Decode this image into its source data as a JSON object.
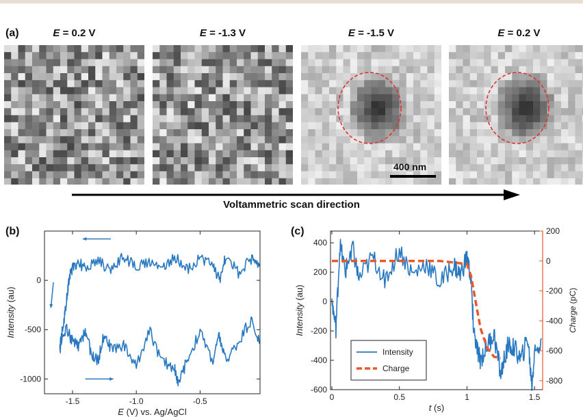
{
  "colors": {
    "trace": "#2878c1",
    "charge": "#e8582a",
    "circle": "#e03030",
    "axis": "#222222",
    "right_axis": "#e8582a"
  },
  "panel_a": {
    "label": "(a)",
    "images": [
      {
        "prefix": "E",
        "value": " = 0.2 V",
        "has_particle": false
      },
      {
        "prefix": "E",
        "value": " = -1.3 V",
        "has_particle": false
      },
      {
        "prefix": "E",
        "value": " = -1.5 V",
        "has_particle": true
      },
      {
        "prefix": "E",
        "value": " = 0.2 V",
        "has_particle": true
      }
    ],
    "scale_bar": "400 nm",
    "scan_label": "Voltammetric scan direction"
  },
  "chart_data": [
    {
      "type": "line",
      "panel": "(b)",
      "xlabel_italic": "E",
      "xlabel_rest": " (V) vs. Ag/AgCl",
      "ylabel_italic": "Intensity",
      "ylabel_rest": " (au)",
      "xlim": [
        -1.72,
        -0.03
      ],
      "ylim": [
        -1150,
        500
      ],
      "xticks": [
        -1.5,
        -1.0,
        -0.5
      ],
      "xtick_labels": [
        "-1.5",
        "-1.0",
        "-0.5"
      ],
      "yticks": [
        -1000,
        -500,
        0
      ],
      "ytick_labels": [
        "-1000",
        "-500",
        "0"
      ],
      "series": [
        {
          "segment": "forward (upper branch, scanning negative)",
          "x": [
            -0.03,
            -0.1,
            -0.2,
            -0.3,
            -0.35,
            -0.4,
            -0.5,
            -0.6,
            -0.7,
            -0.8,
            -0.9,
            -1.0,
            -1.1,
            -1.2,
            -1.3,
            -1.4,
            -1.45,
            -1.5,
            -1.53,
            -1.55,
            -1.58,
            -1.6
          ],
          "y": [
            150,
            220,
            80,
            230,
            0,
            150,
            220,
            120,
            240,
            120,
            200,
            120,
            250,
            100,
            200,
            120,
            180,
            120,
            0,
            -250,
            -500,
            -700
          ]
        },
        {
          "segment": "reverse (lower branch, scanning positive)",
          "x": [
            -1.6,
            -1.55,
            -1.5,
            -1.45,
            -1.4,
            -1.35,
            -1.3,
            -1.25,
            -1.2,
            -1.1,
            -1.0,
            -0.9,
            -0.8,
            -0.7,
            -0.67,
            -0.6,
            -0.5,
            -0.4,
            -0.35,
            -0.3,
            -0.2,
            -0.1,
            -0.03
          ],
          "y": [
            -700,
            -480,
            -620,
            -680,
            -500,
            -760,
            -820,
            -520,
            -700,
            -650,
            -870,
            -500,
            -820,
            -880,
            -1060,
            -800,
            -520,
            -820,
            -560,
            -820,
            -620,
            -400,
            -640
          ]
        }
      ],
      "arrows": [
        "left along upper branch",
        "down at E = -1.6 V",
        "right along lower branch"
      ]
    },
    {
      "type": "line",
      "panel": "(c)",
      "xlabel_italic": "t",
      "xlabel_rest": " (s)",
      "ylabel_italic": "Intensity",
      "ylabel_rest": " (au)",
      "y2label_italic": "Charge",
      "y2label_rest": " (pC)",
      "xlim": [
        -0.01,
        1.56
      ],
      "ylim": [
        -600,
        480
      ],
      "y2lim": [
        -860,
        200
      ],
      "xticks": [
        0,
        0.5,
        1.0,
        1.5
      ],
      "xtick_labels": [
        "0",
        "0.5",
        "1",
        "1.5"
      ],
      "yticks": [
        -600,
        -400,
        -200,
        0,
        200,
        400
      ],
      "ytick_labels": [
        "-600",
        "-400",
        "-200",
        "0",
        "200",
        "400"
      ],
      "y2ticks": [
        -800,
        -600,
        -400,
        -200,
        0,
        200
      ],
      "y2tick_labels": [
        "-800",
        "-600",
        "-400",
        "-200",
        "0",
        "200"
      ],
      "legend_position": "bottom-left",
      "series": [
        {
          "name": "Intensity",
          "x": [
            0,
            0.03,
            0.06,
            0.1,
            0.15,
            0.2,
            0.3,
            0.4,
            0.5,
            0.6,
            0.7,
            0.8,
            0.9,
            0.95,
            1.0,
            1.03,
            1.05,
            1.08,
            1.1,
            1.15,
            1.2,
            1.25,
            1.3,
            1.35,
            1.4,
            1.45,
            1.48,
            1.5,
            1.55
          ],
          "y": [
            0,
            -180,
            380,
            200,
            380,
            150,
            300,
            150,
            350,
            180,
            260,
            120,
            250,
            180,
            300,
            150,
            -200,
            -350,
            -400,
            -300,
            -220,
            -500,
            -300,
            -320,
            -400,
            -250,
            -570,
            -350,
            -250
          ]
        },
        {
          "name": "Charge",
          "axis": "right",
          "x": [
            0,
            0.2,
            0.4,
            0.6,
            0.8,
            1.0,
            1.03,
            1.06,
            1.1,
            1.15,
            1.2,
            1.25
          ],
          "y": [
            0,
            0,
            0,
            0,
            0,
            -20,
            -100,
            -250,
            -450,
            -580,
            -640,
            -650
          ]
        }
      ]
    }
  ]
}
